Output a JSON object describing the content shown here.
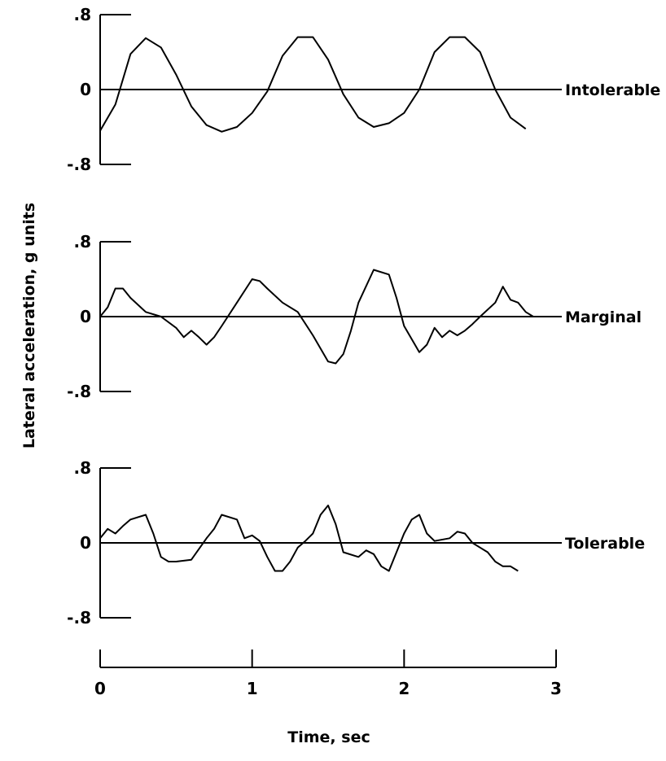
{
  "chart_data": {
    "type": "line",
    "ylabel": "Lateral acceleration, g units",
    "xlabel": "Time, sec",
    "xlim": [
      0,
      3
    ],
    "x_ticks": [
      "0",
      "1",
      "2",
      "3"
    ],
    "panels": [
      {
        "name": "Intolerable",
        "ylim": [
          -0.8,
          0.8
        ],
        "y_ticks": [
          ".8",
          "0",
          "-.8"
        ],
        "x": [
          0,
          0.1,
          0.2,
          0.3,
          0.4,
          0.5,
          0.6,
          0.7,
          0.8,
          0.9,
          1.0,
          1.1,
          1.2,
          1.3,
          1.4,
          1.5,
          1.6,
          1.7,
          1.8,
          1.9,
          2.0,
          2.1,
          2.2,
          2.3,
          2.4,
          2.5,
          2.6,
          2.7,
          2.8
        ],
        "y": [
          -0.44,
          -0.16,
          0.38,
          0.55,
          0.45,
          0.16,
          -0.18,
          -0.38,
          -0.45,
          -0.4,
          -0.25,
          -0.02,
          0.36,
          0.56,
          0.56,
          0.32,
          -0.05,
          -0.3,
          -0.4,
          -0.36,
          -0.25,
          0.0,
          0.4,
          0.56,
          0.56,
          0.4,
          0.0,
          -0.3,
          -0.42
        ]
      },
      {
        "name": "Marginal",
        "ylim": [
          -0.8,
          0.8
        ],
        "y_ticks": [
          ".8",
          "0",
          "-.8"
        ],
        "x": [
          0,
          0.05,
          0.1,
          0.15,
          0.2,
          0.3,
          0.4,
          0.5,
          0.55,
          0.6,
          0.65,
          0.7,
          0.75,
          0.8,
          0.9,
          1.0,
          1.05,
          1.1,
          1.2,
          1.3,
          1.4,
          1.5,
          1.55,
          1.6,
          1.65,
          1.7,
          1.8,
          1.9,
          1.95,
          2.0,
          2.1,
          2.15,
          2.2,
          2.25,
          2.3,
          2.35,
          2.4,
          2.45,
          2.5,
          2.6,
          2.65,
          2.7,
          2.75,
          2.8,
          2.85
        ],
        "y": [
          0.0,
          0.1,
          0.3,
          0.3,
          0.2,
          0.05,
          0.0,
          -0.12,
          -0.22,
          -0.15,
          -0.22,
          -0.3,
          -0.22,
          -0.1,
          0.15,
          0.4,
          0.38,
          0.3,
          0.15,
          0.05,
          -0.2,
          -0.48,
          -0.5,
          -0.4,
          -0.15,
          0.15,
          0.5,
          0.45,
          0.2,
          -0.1,
          -0.38,
          -0.3,
          -0.12,
          -0.22,
          -0.15,
          -0.2,
          -0.15,
          -0.08,
          0.0,
          0.15,
          0.32,
          0.18,
          0.15,
          0.05,
          0.0
        ]
      },
      {
        "name": "Tolerable",
        "ylim": [
          -0.8,
          0.8
        ],
        "y_ticks": [
          ".8",
          "0",
          "-.8"
        ],
        "x": [
          0,
          0.05,
          0.1,
          0.15,
          0.2,
          0.3,
          0.35,
          0.4,
          0.45,
          0.5,
          0.6,
          0.7,
          0.75,
          0.8,
          0.9,
          0.95,
          1.0,
          1.05,
          1.1,
          1.15,
          1.2,
          1.25,
          1.3,
          1.35,
          1.4,
          1.45,
          1.5,
          1.55,
          1.6,
          1.7,
          1.75,
          1.8,
          1.85,
          1.9,
          1.95,
          2.0,
          2.05,
          2.1,
          2.15,
          2.2,
          2.3,
          2.35,
          2.4,
          2.45,
          2.5,
          2.55,
          2.6,
          2.65,
          2.7,
          2.75
        ],
        "y": [
          0.05,
          0.15,
          0.1,
          0.18,
          0.25,
          0.3,
          0.1,
          -0.15,
          -0.2,
          -0.2,
          -0.18,
          0.05,
          0.15,
          0.3,
          0.25,
          0.05,
          0.08,
          0.02,
          -0.15,
          -0.3,
          -0.3,
          -0.2,
          -0.05,
          0.02,
          0.1,
          0.3,
          0.4,
          0.2,
          -0.1,
          -0.15,
          -0.08,
          -0.12,
          -0.25,
          -0.3,
          -0.1,
          0.1,
          0.25,
          0.3,
          0.1,
          0.02,
          0.05,
          0.12,
          0.1,
          0.0,
          -0.05,
          -0.1,
          -0.2,
          -0.25,
          -0.25,
          -0.3
        ]
      }
    ]
  }
}
